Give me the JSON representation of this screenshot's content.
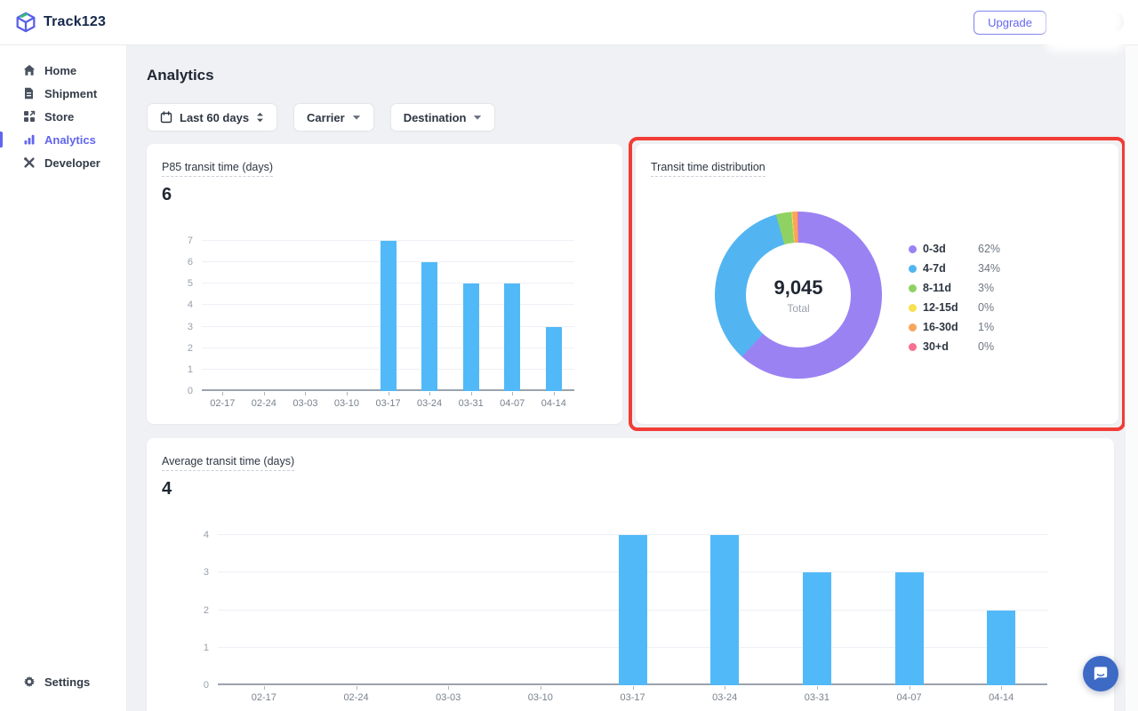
{
  "header": {
    "brand": "Track123",
    "upgrade_label": "Upgrade"
  },
  "sidebar": {
    "items": [
      {
        "label": "Home",
        "icon": "home-icon",
        "active": false
      },
      {
        "label": "Shipment",
        "icon": "document-icon",
        "active": false
      },
      {
        "label": "Store",
        "icon": "store-icon",
        "active": false
      },
      {
        "label": "Analytics",
        "icon": "bar-chart-icon",
        "active": true
      },
      {
        "label": "Developer",
        "icon": "tools-icon",
        "active": false
      }
    ],
    "footer_item": {
      "label": "Settings",
      "icon": "gear-icon"
    }
  },
  "page": {
    "title": "Analytics",
    "filters": [
      {
        "label": "Last 60 days",
        "icon": "calendar-icon",
        "control": "up-down-arrows"
      },
      {
        "label": "Carrier",
        "control": "caret-down"
      },
      {
        "label": "Destination",
        "control": "caret-down"
      }
    ],
    "highlight_border_color": "#f23c36"
  },
  "chart_data": [
    {
      "type": "bar",
      "title": "P85 transit time (days)",
      "headline_value": "6",
      "categories": [
        "02-17",
        "02-24",
        "03-03",
        "03-10",
        "03-17",
        "03-24",
        "03-31",
        "04-07",
        "04-14"
      ],
      "values": [
        0,
        0,
        0,
        0,
        7,
        6,
        5,
        5,
        3
      ],
      "ylim": [
        0,
        7
      ],
      "yticks": [
        0,
        1,
        2,
        3,
        4,
        5,
        6,
        7
      ],
      "bar_color": "#51b9f8",
      "grid": true
    },
    {
      "type": "pie",
      "title": "Transit time distribution",
      "total_value": "9,045",
      "total_label": "Total",
      "legend_position": "right",
      "segments": [
        {
          "label": "0-3d",
          "pct": "62%",
          "value": 62,
          "color": "#9b82f3"
        },
        {
          "label": "4-7d",
          "pct": "34%",
          "value": 34,
          "color": "#52b5f2"
        },
        {
          "label": "8-11d",
          "pct": "3%",
          "value": 3,
          "color": "#8fd263"
        },
        {
          "label": "12-15d",
          "pct": "0%",
          "value": 0,
          "color": "#f8e04f"
        },
        {
          "label": "16-30d",
          "pct": "1%",
          "value": 1,
          "color": "#f8a55e"
        },
        {
          "label": "30+d",
          "pct": "0%",
          "value": 0,
          "color": "#f7708f"
        }
      ]
    },
    {
      "type": "bar",
      "title": "Average transit time (days)",
      "headline_value": "4",
      "categories": [
        "02-17",
        "02-24",
        "03-03",
        "03-10",
        "03-17",
        "03-24",
        "03-31",
        "04-07",
        "04-14"
      ],
      "values": [
        0,
        0,
        0,
        0,
        4,
        4,
        3,
        3,
        2
      ],
      "ylim": [
        0,
        4
      ],
      "yticks": [
        0,
        1,
        2,
        3,
        4
      ],
      "bar_color": "#51b9f8",
      "grid": true
    }
  ]
}
